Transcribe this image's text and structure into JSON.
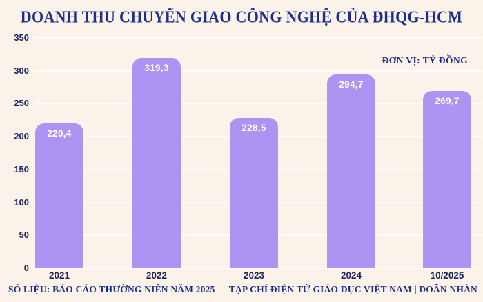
{
  "chart_data": {
    "type": "bar",
    "title": "DOANH THU CHUYỂN GIAO CÔNG NGHỆ CỦA ĐHQG-HCM",
    "unit_label": "ĐƠN VỊ: TỶ ĐỒNG",
    "categories": [
      "2021",
      "2022",
      "2023",
      "2024",
      "10/2025"
    ],
    "values": [
      220.4,
      319.3,
      228.5,
      294.7,
      269.7
    ],
    "value_labels": [
      "220,4",
      "319,3",
      "228,5",
      "294,7",
      "269,7"
    ],
    "y_ticks": [
      0,
      50,
      100,
      150,
      200,
      250,
      300,
      350
    ],
    "ylim": [
      0,
      350
    ],
    "grid": true,
    "legend": "none",
    "source_left": "SỐ LIỆU: BÁO CÁO THƯỜNG NIÊN NĂM 2025",
    "source_right": "TẠP CHÍ ĐIỆN TỬ GIÁO DỤC VIỆT NAM | DOÃN NHÀN",
    "colors": {
      "background": "#fbf2ea",
      "bar": "#ac94f3",
      "title_text": "#1c2f8c",
      "axis_text": "#20265a",
      "value_text": "#ffffff",
      "gridline": "rgba(255,255,255,0.78)"
    }
  }
}
